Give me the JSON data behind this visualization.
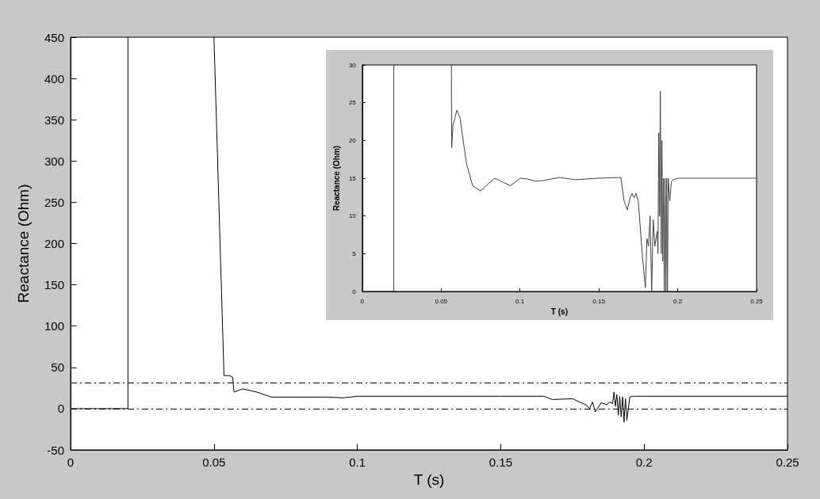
{
  "chart_data": [
    {
      "type": "line",
      "xlabel": "T (s)",
      "ylabel": "Reactance (Ohm)",
      "xlim": [
        0,
        0.25
      ],
      "ylim": [
        -50,
        450
      ],
      "xticks": [
        0,
        0.05,
        0.1,
        0.15,
        0.2,
        0.25
      ],
      "yticks": [
        -50,
        0,
        50,
        100,
        150,
        200,
        250,
        300,
        350,
        400,
        450
      ],
      "grid": false,
      "marker": "none",
      "line_style": "solid",
      "series": [
        {
          "color": "#000000",
          "x": [
            0,
            0.02,
            0.02,
            0.035,
            0.05,
            0.0535,
            0.0555,
            0.0565,
            0.057,
            0.06,
            0.065,
            0.07,
            0.08,
            0.09,
            0.095,
            0.1,
            0.15,
            0.165,
            0.168,
            0.175,
            0.18,
            0.181,
            0.182,
            0.183,
            0.185,
            0.187,
            0.188,
            0.189,
            0.1895,
            0.19,
            0.1905,
            0.191,
            0.1915,
            0.192,
            0.1925,
            0.193,
            0.1935,
            0.194,
            0.195,
            0.196,
            0.197,
            0.2,
            0.25
          ],
          "values": [
            0,
            0,
            450,
            null,
            450,
            40,
            40,
            38,
            20,
            24,
            20,
            14,
            14,
            14,
            13,
            15,
            15,
            15,
            11,
            12,
            4,
            0,
            8,
            -4,
            7,
            5,
            8,
            6,
            20,
            3,
            17,
            -8,
            15,
            -10,
            14,
            -16,
            12,
            -14,
            14,
            15,
            15,
            15,
            15
          ]
        }
      ],
      "ref_lines": [
        {
          "axis": "y",
          "value": 0,
          "line_style": "dashed",
          "color": "#000000"
        },
        {
          "axis": "y",
          "value": 31,
          "line_style": "dashed",
          "color": "#000000"
        }
      ]
    },
    {
      "type": "line",
      "xlabel": "T (s)",
      "ylabel": "Reactance (Ohm)",
      "xlim": [
        0,
        0.25
      ],
      "ylim": [
        0,
        30
      ],
      "xticks": [
        0,
        0.05,
        0.1,
        0.15,
        0.2,
        0.25
      ],
      "yticks": [
        0,
        5,
        10,
        15,
        20,
        25,
        30
      ],
      "grid": false,
      "marker": "none",
      "line_style": "solid",
      "series": [
        {
          "color": "#404040",
          "x": [
            0,
            0.02,
            0.02,
            0.04,
            0.0565,
            0.0567,
            0.0575,
            0.06,
            0.062,
            0.066,
            0.07,
            0.075,
            0.08,
            0.084,
            0.089,
            0.094,
            0.1,
            0.105,
            0.11,
            0.115,
            0.125,
            0.135,
            0.15,
            0.164,
            0.166,
            0.168,
            0.17,
            0.171,
            0.1725,
            0.1735,
            0.175,
            0.1775,
            0.1795,
            0.1805,
            0.1815,
            0.1825,
            0.1835,
            0.1845,
            0.1855,
            0.187,
            0.1875,
            0.188,
            0.1885,
            0.189,
            0.1895,
            0.19,
            0.1905,
            0.191,
            0.1915,
            0.192,
            0.1925,
            0.193,
            0.1935,
            0.194,
            0.195,
            0.196,
            0.197,
            0.2,
            0.25
          ],
          "values": [
            0,
            0,
            30,
            null,
            30,
            19,
            22,
            24,
            23,
            17,
            14,
            13.3,
            14.3,
            15,
            14.5,
            14,
            15,
            14.9,
            14.6,
            14.7,
            15.1,
            14.8,
            15,
            15.1,
            12,
            10.8,
            12.5,
            13,
            12.4,
            13,
            12,
            5,
            0.5,
            7,
            6,
            10,
            0,
            9.5,
            6,
            8,
            5,
            21,
            10,
            26.5,
            5,
            20,
            4,
            15,
            0,
            15,
            0,
            15,
            0,
            15,
            12,
            14.5,
            14.8,
            15,
            15
          ]
        }
      ]
    }
  ]
}
